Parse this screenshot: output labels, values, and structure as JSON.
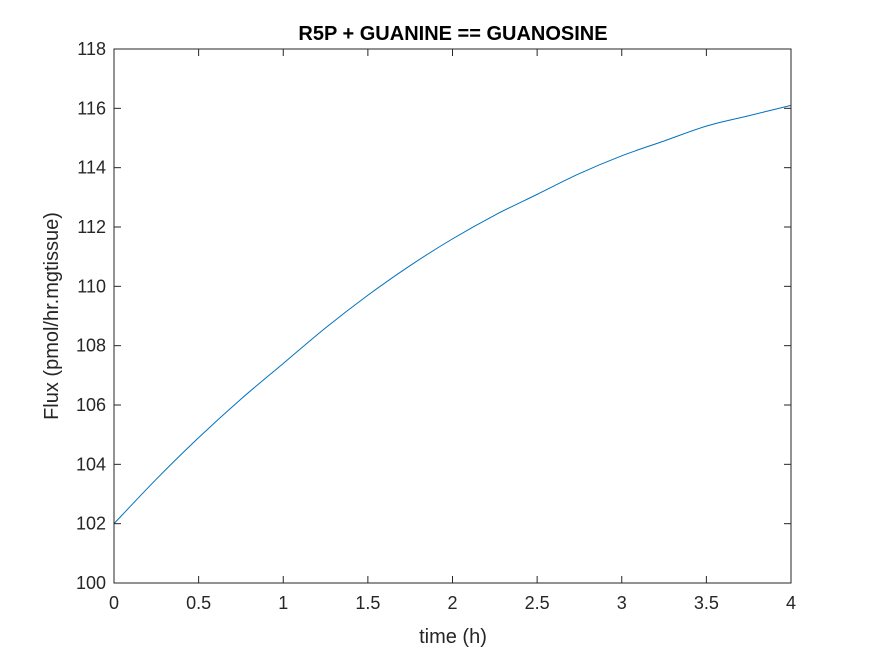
{
  "chart_data": {
    "type": "line",
    "title": "R5P + GUANINE == GUANOSINE",
    "xlabel": "time (h)",
    "ylabel": "Flux (pmol/hr.mgtissue)",
    "xlim": [
      0,
      4
    ],
    "ylim": [
      100,
      118
    ],
    "xticks": [
      0,
      0.5,
      1,
      1.5,
      2,
      2.5,
      3,
      3.5,
      4
    ],
    "xtick_labels": [
      "0",
      "0.5",
      "1",
      "1.5",
      "2",
      "2.5",
      "3",
      "3.5",
      "4"
    ],
    "yticks": [
      100,
      102,
      104,
      106,
      108,
      110,
      112,
      114,
      116,
      118
    ],
    "ytick_labels": [
      "100",
      "102",
      "104",
      "106",
      "108",
      "110",
      "112",
      "114",
      "116",
      "118"
    ],
    "grid": false,
    "series": [
      {
        "color": "#0072BD",
        "x": [
          0,
          0.25,
          0.5,
          0.75,
          1,
          1.25,
          1.5,
          1.75,
          2,
          2.25,
          2.5,
          2.75,
          3,
          3.25,
          3.5,
          3.75,
          4
        ],
        "y": [
          102.0,
          103.5,
          104.9,
          106.2,
          107.4,
          108.6,
          109.7,
          110.7,
          111.6,
          112.4,
          113.1,
          113.8,
          114.4,
          114.9,
          115.4,
          115.75,
          116.1
        ]
      }
    ]
  }
}
